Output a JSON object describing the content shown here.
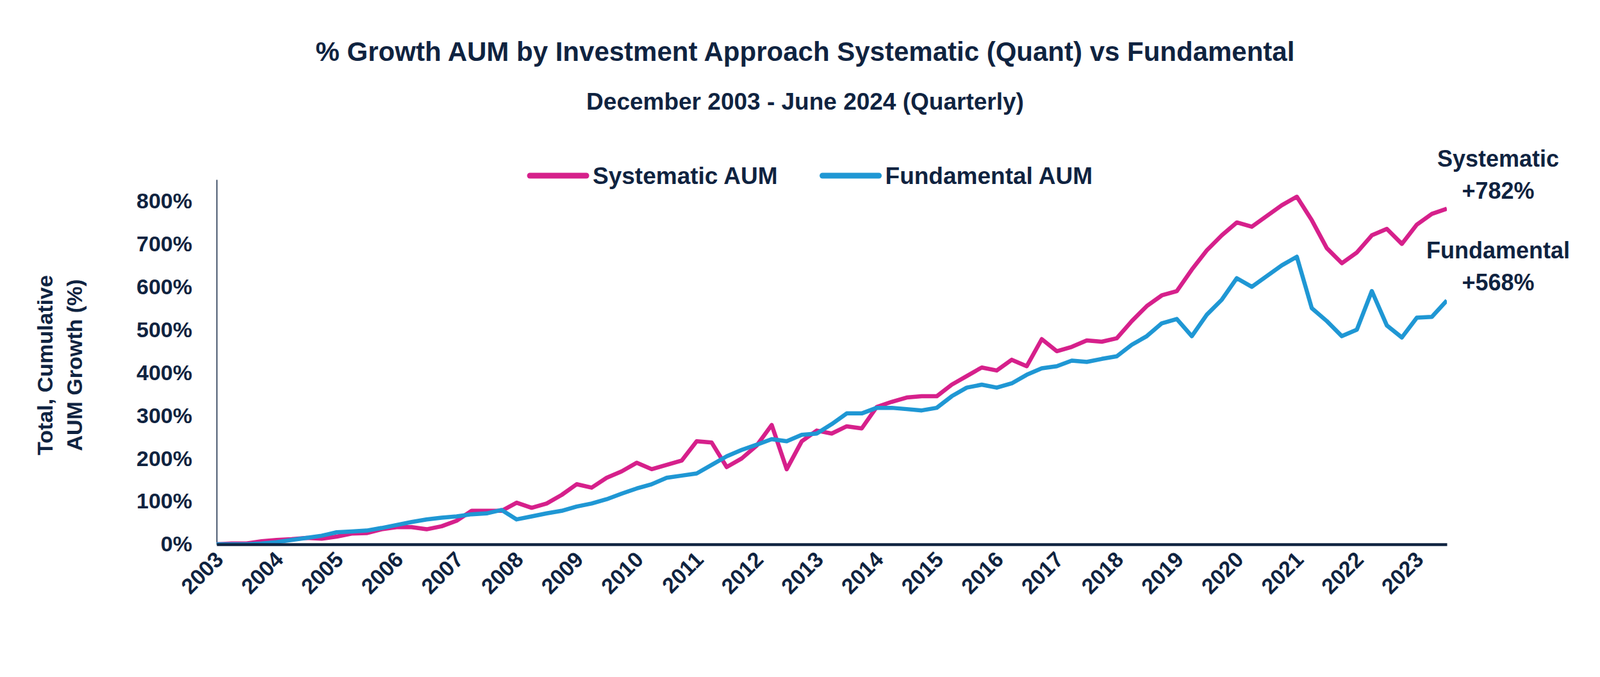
{
  "chart_data": {
    "type": "line",
    "title": "% Growth AUM by Investment Approach Systematic (Quant) vs Fundamental",
    "subtitle": "December 2003 - June 2024 (Quarterly)",
    "y_label": [
      "Total, Cumulative",
      "AUM Growth (%)"
    ],
    "categories": [
      "2003",
      null,
      null,
      null,
      "2004",
      null,
      null,
      null,
      "2005",
      null,
      null,
      null,
      "2006",
      null,
      null,
      null,
      "2007",
      null,
      null,
      null,
      "2008",
      null,
      null,
      null,
      "2009",
      null,
      null,
      null,
      "2010",
      null,
      null,
      null,
      "2011",
      null,
      null,
      null,
      "2012",
      null,
      null,
      null,
      "2013",
      null,
      null,
      null,
      "2014",
      null,
      null,
      null,
      "2015",
      null,
      null,
      null,
      "2016",
      null,
      null,
      null,
      "2017",
      null,
      null,
      null,
      "2018",
      null,
      null,
      null,
      "2019",
      null,
      null,
      null,
      "2020",
      null,
      null,
      null,
      "2021",
      null,
      null,
      null,
      "2022",
      null,
      null,
      null,
      "2023",
      null,
      null
    ],
    "series": [
      {
        "name": "Systematic AUM",
        "color": "#d6208b",
        "values": [
          0,
          2,
          2,
          7,
          10,
          12,
          15,
          13,
          18,
          25,
          26,
          35,
          40,
          40,
          35,
          42,
          55,
          78,
          78,
          78,
          97,
          85,
          95,
          115,
          140,
          132,
          155,
          170,
          190,
          175,
          185,
          195,
          240,
          237,
          180,
          200,
          230,
          278,
          175,
          240,
          265,
          258,
          275,
          270,
          320,
          332,
          342,
          345,
          345,
          372,
          392,
          412,
          405,
          430,
          415,
          478,
          450,
          460,
          475,
          472,
          480,
          520,
          555,
          580,
          590,
          640,
          685,
          720,
          750,
          740,
          765,
          790,
          810,
          755,
          690,
          655,
          680,
          720,
          735,
          700,
          745,
          770,
          782
        ]
      },
      {
        "name": "Fundamental AUM",
        "color": "#1f97d4",
        "values": [
          0,
          0,
          0,
          2,
          5,
          10,
          15,
          20,
          28,
          30,
          32,
          38,
          45,
          52,
          58,
          62,
          65,
          70,
          72,
          80,
          58,
          65,
          72,
          78,
          88,
          95,
          105,
          118,
          130,
          140,
          155,
          160,
          165,
          185,
          205,
          220,
          232,
          245,
          240,
          255,
          258,
          280,
          305,
          305,
          318,
          318,
          315,
          312,
          318,
          345,
          365,
          372,
          365,
          375,
          395,
          410,
          415,
          428,
          425,
          432,
          438,
          465,
          485,
          515,
          525,
          485,
          535,
          570,
          620,
          600,
          625,
          650,
          670,
          550,
          520,
          485,
          500,
          590,
          510,
          482,
          528,
          530,
          568
        ]
      }
    ],
    "ylim": [
      0,
      850
    ],
    "yticks": [
      {
        "value": 0,
        "label": "0%"
      },
      {
        "value": 100,
        "label": "100%"
      },
      {
        "value": 200,
        "label": "200%"
      },
      {
        "value": 300,
        "label": "300%"
      },
      {
        "value": 400,
        "label": "400%"
      },
      {
        "value": 500,
        "label": "500%"
      },
      {
        "value": 600,
        "label": "600%"
      },
      {
        "value": 700,
        "label": "700%"
      },
      {
        "value": 800,
        "label": "800%"
      }
    ],
    "annotations": [
      [
        "Systematic",
        "+782%"
      ],
      [
        "Fundamental",
        "+568%"
      ]
    ],
    "legend": "top",
    "grid": false
  }
}
